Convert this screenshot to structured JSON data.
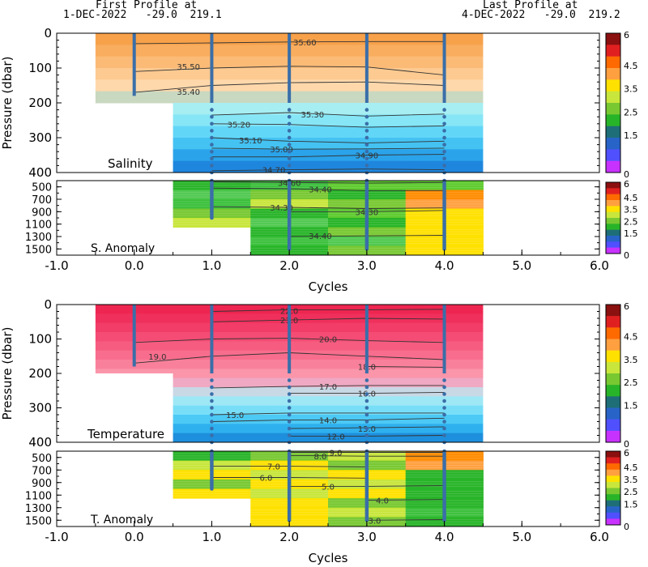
{
  "header": {
    "first_label": "First Profile at",
    "first_info": "1-DEC-2022   -29.0  219.1",
    "last_label": "Last Profile at",
    "last_info": "4-DEC-2022   -29.0  219.2"
  },
  "chart_data": {
    "type": "heatmap",
    "x_axis": {
      "label": "Cycles",
      "range": [
        -1.0,
        6.0
      ],
      "ticks": [
        "-1.0",
        "0.0",
        "1.0",
        "2.0",
        "3.0",
        "4.0",
        "5.0",
        "6.0"
      ]
    },
    "profile_cycles": [
      0,
      1,
      2,
      3,
      4
    ],
    "colorbar": {
      "tick_labels": [
        "6",
        "4.5",
        "3.5",
        "2.5",
        "1.5",
        "0"
      ],
      "colors": [
        "#8b1010",
        "#e02020",
        "#ff6a00",
        "#ffa040",
        "#ffe100",
        "#c8e63c",
        "#78c832",
        "#28b428",
        "#1e6e78",
        "#2864c8",
        "#5050ff",
        "#c832ff"
      ]
    },
    "panels": [
      {
        "label": "Salinity",
        "variable": "salinity",
        "y_axis": {
          "label": "Pressure (dbar)",
          "range": [
            0,
            400
          ],
          "ticks": [
            "0",
            "100",
            "200",
            "300",
            "400"
          ]
        },
        "contours": [
          {
            "label": "35.60",
            "points": [
              [
                0,
                30
              ],
              [
                1,
                28
              ],
              [
                2,
                25
              ],
              [
                3,
                24
              ],
              [
                4,
                24
              ]
            ],
            "label_at": [
              2.2,
              25
            ]
          },
          {
            "label": "35.50",
            "points": [
              [
                0,
                110
              ],
              [
                1,
                100
              ],
              [
                2,
                95
              ],
              [
                3,
                97
              ],
              [
                4,
                120
              ]
            ],
            "label_at": [
              0.7,
              95
            ]
          },
          {
            "label": "35.40",
            "points": [
              [
                0,
                170
              ],
              [
                1,
                150
              ],
              [
                2,
                142
              ],
              [
                3,
                140
              ],
              [
                4,
                150
              ]
            ],
            "label_at": [
              0.7,
              168
            ]
          },
          {
            "label": "35.30",
            "points": [
              [
                1,
                235
              ],
              [
                2,
                228
              ],
              [
                3,
                238
              ],
              [
                4,
                232
              ]
            ],
            "label_at": [
              2.3,
              232
            ]
          },
          {
            "label": "35.20",
            "points": [
              [
                1,
                260
              ],
              [
                2,
                262
              ],
              [
                3,
                270
              ],
              [
                4,
                266
              ]
            ],
            "label_at": [
              1.35,
              262
            ]
          },
          {
            "label": "35.10",
            "points": [
              [
                1,
                300
              ],
              [
                2,
                310
              ],
              [
                3,
                315
              ],
              [
                4,
                310
              ]
            ],
            "label_at": [
              1.5,
              307
            ]
          },
          {
            "label": "35.00",
            "points": [
              [
                1,
                330
              ],
              [
                2,
                333
              ],
              [
                3,
                332
              ],
              [
                4,
                330
              ]
            ],
            "label_at": [
              1.9,
              333
            ]
          },
          {
            "label": "34.90",
            "points": [
              [
                1,
                355
              ],
              [
                2,
                355
              ],
              [
                3,
                350
              ],
              [
                4,
                348
              ]
            ],
            "label_at": [
              3.0,
              350
            ]
          },
          {
            "label": "34.70",
            "points": [
              [
                1,
                395
              ],
              [
                2,
                392
              ],
              [
                3,
                390
              ],
              [
                4,
                392
              ]
            ],
            "label_at": [
              1.8,
              392
            ]
          }
        ]
      },
      {
        "label": "S. Anomaly",
        "variable": "salinity_anomaly",
        "y_axis": {
          "range": [
            400,
            1600
          ],
          "ticks": [
            "500",
            "700",
            "900",
            "1100",
            "1300",
            "1500"
          ]
        },
        "contours": [
          {
            "label": "34.60",
            "points": [
              [
                1,
                420
              ],
              [
                2,
                430
              ],
              [
                3,
                440
              ],
              [
                4,
                430
              ]
            ],
            "label_at": [
              2.0,
              430
            ]
          },
          {
            "label": "34.40",
            "points": [
              [
                1,
                520
              ],
              [
                2,
                530
              ],
              [
                3,
                560
              ],
              [
                4,
                560
              ]
            ],
            "label_at": [
              2.4,
              540
            ]
          },
          {
            "label": "34.30",
            "points": [
              [
                1,
                820
              ],
              [
                2,
                830
              ],
              [
                3,
                850
              ],
              [
                4,
                840
              ]
            ],
            "label_at": [
              1.9,
              830
            ]
          },
          {
            "label": "34.30",
            "points": [
              [
                2,
                900
              ],
              [
                3,
                900
              ],
              [
                4,
                880
              ]
            ],
            "label_at": [
              3.0,
              900
            ]
          },
          {
            "label": "34.40",
            "points": [
              [
                2,
                1300
              ],
              [
                3,
                1290
              ],
              [
                4,
                1280
              ]
            ],
            "label_at": [
              2.4,
              1290
            ]
          }
        ]
      },
      {
        "label": "Temperature",
        "variable": "temperature",
        "y_axis": {
          "label": "Pressure (dbar)",
          "range": [
            0,
            400
          ],
          "ticks": [
            "0",
            "100",
            "200",
            "300",
            "400"
          ]
        },
        "contours": [
          {
            "label": "22.0",
            "points": [
              [
                1,
                20
              ],
              [
                2,
                15
              ],
              [
                3,
                15
              ],
              [
                4,
                14
              ]
            ],
            "label_at": [
              2.0,
              18
            ]
          },
          {
            "label": "21.0",
            "points": [
              [
                1,
                50
              ],
              [
                2,
                45
              ],
              [
                3,
                40
              ],
              [
                4,
                42
              ]
            ],
            "label_at": [
              2.0,
              45
            ]
          },
          {
            "label": "20.0",
            "points": [
              [
                0,
                110
              ],
              [
                1,
                100
              ],
              [
                2,
                98
              ],
              [
                3,
                105
              ],
              [
                4,
                110
              ]
            ],
            "label_at": [
              2.5,
              100
            ]
          },
          {
            "label": "19.0",
            "points": [
              [
                0,
                170
              ],
              [
                1,
                150
              ],
              [
                2,
                140
              ],
              [
                3,
                150
              ],
              [
                4,
                160
              ]
            ],
            "label_at": [
              0.3,
              150
            ]
          },
          {
            "label": "18.0",
            "points": [
              [
                3,
                180
              ],
              [
                4,
                182
              ]
            ],
            "label_at": [
              3.0,
              180
            ]
          },
          {
            "label": "17.0",
            "points": [
              [
                1,
                242
              ],
              [
                2,
                238
              ],
              [
                3,
                235
              ],
              [
                4,
                235
              ]
            ],
            "label_at": [
              2.5,
              238
            ]
          },
          {
            "label": "16.0",
            "points": [
              [
                2,
                258
              ],
              [
                3,
                258
              ],
              [
                4,
                255
              ]
            ],
            "label_at": [
              3.0,
              258
            ]
          },
          {
            "label": "15.0",
            "points": [
              [
                1,
                320
              ],
              [
                2,
                315
              ],
              [
                3,
                315
              ],
              [
                4,
                315
              ]
            ],
            "label_at": [
              1.3,
              320
            ]
          },
          {
            "label": "14.0",
            "points": [
              [
                1,
                340
              ],
              [
                2,
                335
              ],
              [
                3,
                335
              ],
              [
                4,
                330
              ]
            ],
            "label_at": [
              2.5,
              335
            ]
          },
          {
            "label": "13.0",
            "points": [
              [
                2,
                360
              ],
              [
                3,
                358
              ],
              [
                4,
                355
              ]
            ],
            "label_at": [
              3.0,
              360
            ]
          },
          {
            "label": "12.0",
            "points": [
              [
                2,
                382
              ],
              [
                3,
                382
              ],
              [
                4,
                380
              ]
            ],
            "label_at": [
              2.6,
              382
            ]
          }
        ]
      },
      {
        "label": "T. Anomaly",
        "variable": "temperature_anomaly",
        "y_axis": {
          "range": [
            400,
            1600
          ],
          "ticks": [
            "500",
            "700",
            "900",
            "1100",
            "1300",
            "1500"
          ]
        },
        "contours": [
          {
            "label": "9.0",
            "points": [
              [
                2,
                420
              ],
              [
                3,
                420
              ],
              [
                4,
                420
              ]
            ],
            "label_at": [
              2.6,
              420
            ]
          },
          {
            "label": "8.0",
            "points": [
              [
                2,
                470
              ],
              [
                3,
                480
              ],
              [
                4,
                480
              ]
            ],
            "label_at": [
              2.4,
              475
            ]
          },
          {
            "label": "7.0",
            "points": [
              [
                1,
                640
              ],
              [
                2,
                640
              ],
              [
                3,
                650
              ]
            ],
            "label_at": [
              1.8,
              640
            ]
          },
          {
            "label": "6.0",
            "points": [
              [
                1,
                820
              ],
              [
                2,
                820
              ],
              [
                3,
                830
              ]
            ],
            "label_at": [
              1.7,
              820
            ]
          },
          {
            "label": "5.0",
            "points": [
              [
                2,
                960
              ],
              [
                3,
                960
              ],
              [
                4,
                950
              ]
            ],
            "label_at": [
              2.5,
              960
            ]
          },
          {
            "label": "4.0",
            "points": [
              [
                3,
                1180
              ],
              [
                4,
                1170
              ]
            ],
            "label_at": [
              3.2,
              1180
            ]
          },
          {
            "label": "3.0",
            "points": [
              [
                3,
                1500
              ],
              [
                4,
                1490
              ]
            ],
            "label_at": [
              3.1,
              1500
            ]
          }
        ]
      }
    ]
  }
}
